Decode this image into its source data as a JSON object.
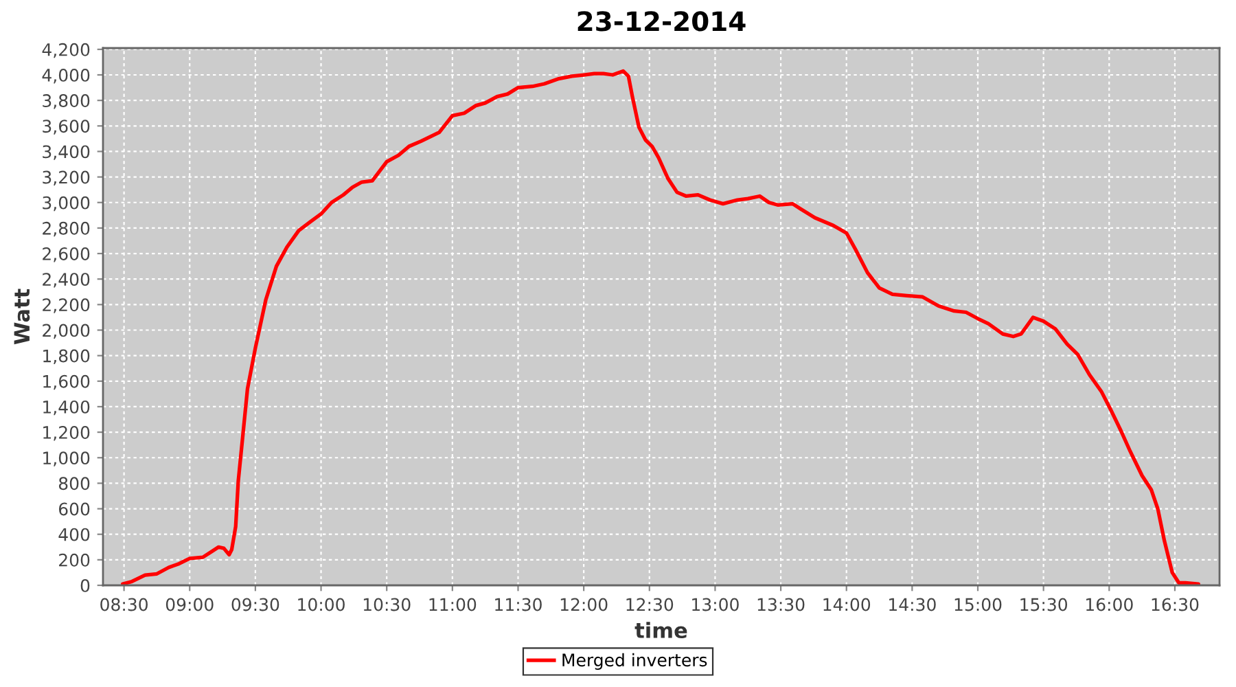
{
  "chart_data": {
    "type": "line",
    "title": "23-12-2014",
    "xlabel": "time",
    "ylabel": "Watt",
    "x": [
      8.49,
      8.56,
      8.66,
      8.75,
      8.84,
      8.92,
      9.0,
      9.1,
      9.16,
      9.22,
      9.26,
      9.3,
      9.32,
      9.35,
      9.37,
      9.41,
      9.44,
      9.5,
      9.58,
      9.66,
      9.74,
      9.83,
      9.92,
      10.0,
      10.08,
      10.17,
      10.24,
      10.31,
      10.39,
      10.5,
      10.59,
      10.67,
      10.76,
      10.9,
      11.0,
      11.09,
      11.18,
      11.25,
      11.34,
      11.42,
      11.5,
      11.61,
      11.7,
      11.81,
      11.91,
      12.0,
      12.08,
      12.15,
      12.22,
      12.3,
      12.34,
      12.37,
      12.42,
      12.47,
      12.52,
      12.57,
      12.64,
      12.71,
      12.78,
      12.87,
      12.96,
      13.06,
      13.17,
      13.25,
      13.34,
      13.41,
      13.48,
      13.59,
      13.65,
      13.76,
      13.9,
      14.0,
      14.07,
      14.16,
      14.25,
      14.35,
      14.46,
      14.58,
      14.7,
      14.82,
      14.91,
      15.0,
      15.08,
      15.19,
      15.27,
      15.33,
      15.42,
      15.5,
      15.59,
      15.68,
      15.76,
      15.85,
      15.94,
      16.01,
      16.09,
      16.16,
      16.25,
      16.32,
      16.37,
      16.42,
      16.48,
      16.53,
      16.58,
      16.68
    ],
    "series": [
      {
        "name": "Merged inverters",
        "color": "#ff0000",
        "values": [
          10,
          30,
          80,
          90,
          140,
          170,
          210,
          220,
          260,
          300,
          290,
          240,
          280,
          460,
          820,
          1230,
          1540,
          1860,
          2240,
          2500,
          2650,
          2780,
          2850,
          2910,
          3000,
          3060,
          3120,
          3160,
          3170,
          3320,
          3370,
          3440,
          3480,
          3550,
          3680,
          3700,
          3760,
          3780,
          3830,
          3850,
          3900,
          3910,
          3930,
          3970,
          3990,
          4000,
          4010,
          4010,
          4000,
          4030,
          3990,
          3830,
          3590,
          3490,
          3440,
          3350,
          3190,
          3080,
          3050,
          3060,
          3020,
          2990,
          3020,
          3030,
          3050,
          3000,
          2980,
          2990,
          2950,
          2880,
          2820,
          2760,
          2630,
          2450,
          2330,
          2280,
          2270,
          2260,
          2190,
          2150,
          2140,
          2090,
          2050,
          1970,
          1950,
          1970,
          2100,
          2070,
          2010,
          1890,
          1810,
          1650,
          1520,
          1380,
          1210,
          1050,
          860,
          750,
          600,
          350,
          100,
          20,
          20,
          10
        ]
      }
    ],
    "xlim": [
      8.34,
      16.84
    ],
    "ylim": [
      0,
      4210
    ],
    "xticks": [
      {
        "value": 8.5,
        "label": "08:30"
      },
      {
        "value": 9.0,
        "label": "09:00"
      },
      {
        "value": 9.5,
        "label": "09:30"
      },
      {
        "value": 10.0,
        "label": "10:00"
      },
      {
        "value": 10.5,
        "label": "10:30"
      },
      {
        "value": 11.0,
        "label": "11:00"
      },
      {
        "value": 11.5,
        "label": "11:30"
      },
      {
        "value": 12.0,
        "label": "12:00"
      },
      {
        "value": 12.5,
        "label": "12:30"
      },
      {
        "value": 13.0,
        "label": "13:00"
      },
      {
        "value": 13.5,
        "label": "13:30"
      },
      {
        "value": 14.0,
        "label": "14:00"
      },
      {
        "value": 14.5,
        "label": "14:30"
      },
      {
        "value": 15.0,
        "label": "15:00"
      },
      {
        "value": 15.5,
        "label": "15:30"
      },
      {
        "value": 16.0,
        "label": "16:00"
      },
      {
        "value": 16.5,
        "label": "16:30"
      }
    ],
    "yticks": [
      0,
      200,
      400,
      600,
      800,
      {
        "value": 1000,
        "label": "1,000"
      },
      {
        "value": 1200,
        "label": "1,200"
      },
      {
        "value": 1400,
        "label": "1,400"
      },
      {
        "value": 1600,
        "label": "1,600"
      },
      {
        "value": 1800,
        "label": "1,800"
      },
      {
        "value": 2000,
        "label": "2,000"
      },
      {
        "value": 2200,
        "label": "2,200"
      },
      {
        "value": 2400,
        "label": "2,400"
      },
      {
        "value": 2600,
        "label": "2,600"
      },
      {
        "value": 2800,
        "label": "2,800"
      },
      {
        "value": 3000,
        "label": "3,000"
      },
      {
        "value": 3200,
        "label": "3,200"
      },
      {
        "value": 3400,
        "label": "3,400"
      },
      {
        "value": 3600,
        "label": "3,600"
      },
      {
        "value": 3800,
        "label": "3,800"
      },
      {
        "value": 4000,
        "label": "4,000"
      },
      {
        "value": 4200,
        "label": "4,200"
      }
    ],
    "grid": true,
    "legend": "bottom",
    "line_style": "solid"
  }
}
